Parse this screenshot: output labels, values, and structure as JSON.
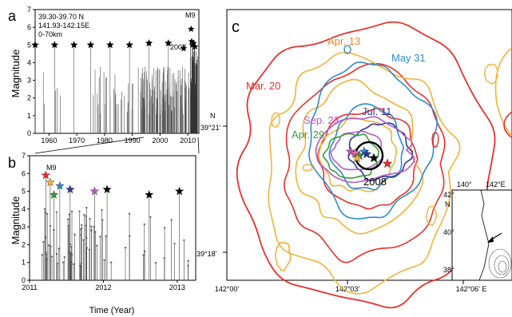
{
  "panel_labels": {
    "a": "a",
    "b": "b",
    "c": "c"
  },
  "panel_a": {
    "ylabel": "Magnitude",
    "info_lat": "39.30-39.70 N",
    "info_lon": "141.93-142.15E",
    "info_depth": "0-70km",
    "m9_label": "M9",
    "year_2008_label": "2008",
    "x_ticks": [
      "1960",
      "1970",
      "1980",
      "1990",
      "2000",
      "2010"
    ],
    "y_ticks": [
      "0",
      "1",
      "2",
      "3",
      "4",
      "5",
      "6",
      "7"
    ]
  },
  "panel_b": {
    "ylabel": "Magnitude",
    "xlabel": "Time (Year)",
    "m9_label": "M9",
    "x_ticks": [
      "2011",
      "2012",
      "2013"
    ],
    "y_ticks": [
      "0",
      "1",
      "2",
      "3",
      "4",
      "5",
      "6",
      "7"
    ]
  },
  "panel_c": {
    "lat_labels": [
      "N",
      "39°21'",
      "39°18'"
    ],
    "lon_labels": [
      "142°00'",
      "142°03'",
      "142°06' E"
    ],
    "contour_labels": {
      "apr13": "Apr. 13",
      "may31": "May 31",
      "mar20": "Mar. 20",
      "jul11": "Jul. 11",
      "sep23": "Sep. 23",
      "apr29": "Apr. 29",
      "y2008": "2008"
    },
    "inset": {
      "lon1": "140°",
      "lon2": "142°E",
      "lat1": "42°",
      "lat2": "40°",
      "lat3": "38°",
      "north": "N"
    }
  },
  "colors": {
    "mar20": "#e8302a",
    "apr13": "#f08a24",
    "apr29": "#3a9a3a",
    "may31": "#2b8ccf",
    "jul11": "#2a3a9a",
    "sep23": "#b45bc4",
    "orange_line": "#f3b23c"
  },
  "chart_data": [
    {
      "type": "scatter",
      "title": "",
      "xlabel": "",
      "ylabel": "Magnitude",
      "xlim": [
        1955,
        2014
      ],
      "ylim": [
        0,
        7
      ],
      "series": [
        {
          "x": [
            1955,
            1962,
            1969,
            1975,
            1982,
            1989,
            1996,
            2003
          ],
          "y": [
            5.0,
            5.0,
            5.0,
            5.0,
            5.0,
            5.0,
            5.1,
            5.1
          ]
        }
      ]
    },
    {
      "type": "scatter",
      "title": "",
      "xlabel": "Time (Year)",
      "ylabel": "Magnitude",
      "xlim": [
        2011,
        2013.25
      ],
      "ylim": [
        0,
        7
      ],
      "series": [
        {
          "x": [
            2011.22,
            2011.28,
            2011.33,
            2011.41,
            2011.55,
            2011.88,
            2012.05,
            2012.62,
            2013.03
          ],
          "y": [
            5.9,
            5.5,
            4.8,
            5.3,
            5.1,
            5.0,
            5.1,
            4.8,
            5.0
          ]
        }
      ]
    }
  ]
}
